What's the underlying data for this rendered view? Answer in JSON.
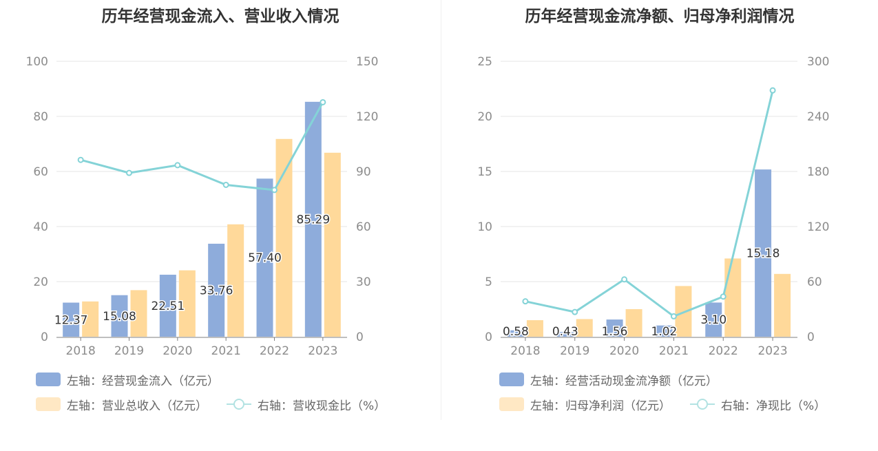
{
  "colors": {
    "bar_primary": "#8eacdb",
    "bar_secondary": "#ffd99a",
    "line": "#84d3d7",
    "legend_primary": "#8eacdb",
    "legend_secondary": "#ffe8c4",
    "legend_line": "#b2e2e2"
  },
  "chart_data": [
    {
      "type": "bar",
      "title": "历年经营现金流入、营业收入情况",
      "categories": [
        "2018",
        "2019",
        "2020",
        "2021",
        "2022",
        "2023"
      ],
      "y_left": {
        "ylim": [
          0,
          100
        ],
        "ticks": [
          "0",
          "20",
          "40",
          "60",
          "80",
          "100"
        ]
      },
      "y_right": {
        "ylim": [
          0,
          150
        ],
        "ticks": [
          "0",
          "30",
          "60",
          "90",
          "120",
          "150"
        ]
      },
      "series": [
        {
          "name": "左轴：经营现金流入（亿元）",
          "axis": "left",
          "type": "bar",
          "values": [
            12.37,
            15.08,
            22.51,
            33.76,
            57.4,
            85.29
          ],
          "labels": [
            "12.37",
            "15.08",
            "22.51",
            "33.76",
            "57.40",
            "85.29"
          ]
        },
        {
          "name": "左轴：营业总收入（亿元）",
          "axis": "left",
          "type": "bar",
          "values": [
            12.8,
            16.9,
            24.1,
            40.8,
            71.8,
            66.8
          ]
        },
        {
          "name": "右轴：营收现金比（%）",
          "axis": "right",
          "type": "line",
          "values": [
            96.3,
            89.2,
            93.4,
            82.7,
            79.9,
            127.7
          ]
        }
      ],
      "legend": [
        {
          "label": "左轴：经营现金流入（亿元）",
          "kind": "bar",
          "color_key": "legend_primary"
        },
        {
          "label": "左轴：营业总收入（亿元）",
          "kind": "bar",
          "color_key": "legend_secondary"
        },
        {
          "label": "右轴：营收现金比（%）",
          "kind": "line",
          "color_key": "legend_line"
        }
      ]
    },
    {
      "type": "bar",
      "title": "历年经营现金流净额、归母净利润情况",
      "categories": [
        "2018",
        "2019",
        "2020",
        "2021",
        "2022",
        "2023"
      ],
      "y_left": {
        "ylim": [
          0,
          25
        ],
        "ticks": [
          "0",
          "5",
          "10",
          "15",
          "20",
          "25"
        ]
      },
      "y_right": {
        "ylim": [
          0,
          300
        ],
        "ticks": [
          "0",
          "60",
          "120",
          "180",
          "240",
          "300"
        ]
      },
      "series": [
        {
          "name": "左轴：经营活动现金流净额（亿元）",
          "axis": "left",
          "type": "bar",
          "values": [
            0.58,
            0.43,
            1.56,
            1.02,
            3.1,
            15.18
          ],
          "labels": [
            "0.58",
            "0.43",
            "1.56",
            "1.02",
            "3.10",
            "15.18"
          ]
        },
        {
          "name": "左轴：归母净利润（亿元）",
          "axis": "left",
          "type": "bar",
          "values": [
            1.5,
            1.6,
            2.5,
            4.6,
            7.1,
            5.7
          ]
        },
        {
          "name": "右轴：净现比（%）",
          "axis": "right",
          "type": "line",
          "values": [
            38.5,
            26.9,
            62.4,
            22.2,
            43.7,
            268.3
          ]
        }
      ],
      "legend": [
        {
          "label": "左轴：经营活动现金流净额（亿元）",
          "kind": "bar",
          "color_key": "legend_primary"
        },
        {
          "label": "左轴：归母净利润（亿元）",
          "kind": "bar",
          "color_key": "legend_secondary"
        },
        {
          "label": "右轴：净现比（%）",
          "kind": "line",
          "color_key": "legend_line"
        }
      ]
    }
  ]
}
